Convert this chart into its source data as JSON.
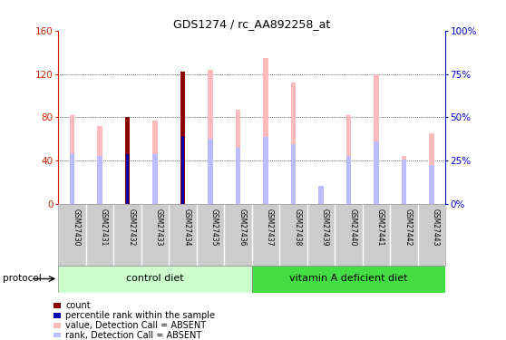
{
  "title": "GDS1274 / rc_AA892258_at",
  "samples": [
    "GSM27430",
    "GSM27431",
    "GSM27432",
    "GSM27433",
    "GSM27434",
    "GSM27435",
    "GSM27436",
    "GSM27437",
    "GSM27438",
    "GSM27439",
    "GSM27440",
    "GSM27441",
    "GSM27442",
    "GSM27443"
  ],
  "value_bars": [
    82,
    72,
    80,
    77,
    122,
    124,
    87,
    135,
    112,
    15,
    82,
    120,
    44,
    65
  ],
  "rank_bars": [
    47,
    44,
    46,
    46,
    63,
    60,
    52,
    62,
    55,
    17,
    44,
    58,
    41,
    36
  ],
  "count_bars": [
    null,
    null,
    80,
    null,
    122,
    null,
    null,
    null,
    null,
    null,
    null,
    null,
    null,
    null
  ],
  "percentile_bars": [
    null,
    null,
    46,
    null,
    63,
    null,
    null,
    null,
    null,
    null,
    null,
    null,
    null,
    null
  ],
  "ylim": [
    0,
    160
  ],
  "yticks_left": [
    0,
    40,
    80,
    120,
    160
  ],
  "yticks_right": [
    0,
    25,
    50,
    75,
    100
  ],
  "groups": [
    {
      "label": "control diet",
      "start": 0,
      "end": 7
    },
    {
      "label": "vitamin A deficient diet",
      "start": 7,
      "end": 14
    }
  ],
  "value_bar_color": "#ffbbbb",
  "rank_bar_color": "#bbbbff",
  "count_bar_color": "#8b0000",
  "percentile_bar_color": "#0000aa",
  "left_axis_color": "#cc2200",
  "right_axis_color": "#0000cc",
  "group_colors": [
    "#ccffcc",
    "#44dd44"
  ],
  "label_bg_color": "#cccccc",
  "legend_items": [
    {
      "color": "#8b0000",
      "label": "count"
    },
    {
      "color": "#0000aa",
      "label": "percentile rank within the sample"
    },
    {
      "color": "#ffbbbb",
      "label": "value, Detection Call = ABSENT"
    },
    {
      "color": "#bbbbff",
      "label": "rank, Detection Call = ABSENT"
    }
  ]
}
